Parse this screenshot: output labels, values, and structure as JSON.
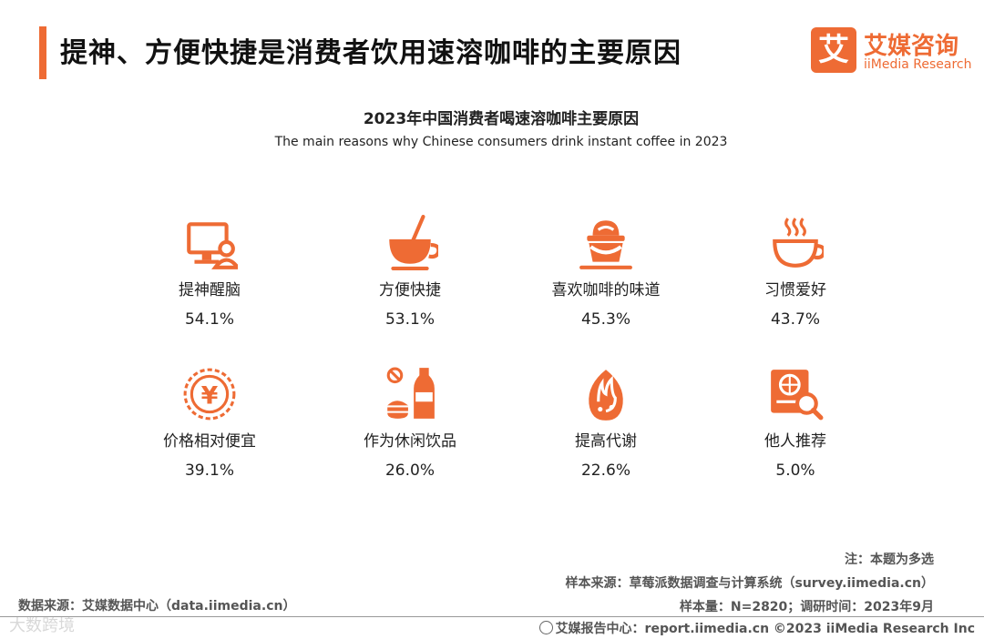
{
  "header": {
    "title": "提神、方便快捷是消费者饮用速溶咖啡的主要原因"
  },
  "logo": {
    "mark": "艾",
    "cn": "艾媒咨询",
    "en": "iiMedia Research"
  },
  "chart_data": {
    "type": "table",
    "title": "2023年中国消费者喝速溶咖啡主要原因",
    "subtitle": "The main reasons why Chinese consumers drink instant coffee in 2023",
    "unit": "%",
    "categories": [
      "提神醒脑",
      "方便快捷",
      "喜欢咖啡的味道",
      "习惯爱好",
      "价格相对便宜",
      "作为休闲饮品",
      "提高代谢",
      "他人推荐"
    ],
    "values": [
      54.1,
      53.1,
      45.3,
      43.7,
      39.1,
      26.0,
      22.6,
      5.0
    ],
    "value_labels": [
      "54.1%",
      "53.1%",
      "45.3%",
      "43.7%",
      "39.1%",
      "26.0%",
      "22.6%",
      "5.0%"
    ],
    "icons": [
      "computer-user-icon",
      "coffee-cup-icon",
      "coffee-drink-icon",
      "hot-cup-icon",
      "yuan-coin-icon",
      "snack-drink-icon",
      "flame-icon",
      "search-doc-icon"
    ],
    "accent_color": "#ee6b34"
  },
  "notes": {
    "multi": "注：本题为多选",
    "sample_source": "样本来源：草莓派数据调查与计算系统（survey.iimedia.cn）",
    "sample_size": "样本量：N=2820；调研时间：2023年9月"
  },
  "source": "数据来源：艾媒数据中心（data.iimedia.cn）",
  "watermark": "大数跨境",
  "footer": "艾媒报告中心：report.iimedia.cn  ©2023  iiMedia Research  Inc"
}
